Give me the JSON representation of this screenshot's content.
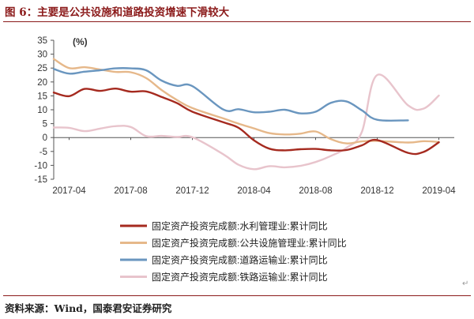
{
  "figure": {
    "title": "图 6：主要是公共设施和道路投资增速下滑较大",
    "source": "资料来源：Wind，国泰君安证券研究"
  },
  "chart_data": {
    "type": "line",
    "unit_label": "(%)",
    "ylim": [
      -15,
      35
    ],
    "yticks": [
      -15,
      -10,
      -5,
      0,
      5,
      10,
      15,
      20,
      25,
      30,
      35
    ],
    "xlim": [
      "2017-03",
      "2019-05"
    ],
    "xticks": [
      "2017-04",
      "2017-08",
      "2017-12",
      "2018-04",
      "2018-08",
      "2018-12",
      "2019-04"
    ],
    "grid": false,
    "legend_position": "bottom",
    "x": [
      "2017-03",
      "2017-04",
      "2017-05",
      "2017-06",
      "2017-07",
      "2017-08",
      "2017-09",
      "2017-10",
      "2017-11",
      "2017-12",
      "2018-02",
      "2018-03",
      "2018-04",
      "2018-05",
      "2018-06",
      "2018-07",
      "2018-08",
      "2018-09",
      "2018-10",
      "2018-11",
      "2018-12",
      "2019-02",
      "2019-03",
      "2019-04",
      "2019-05"
    ],
    "series": [
      {
        "name": "固定资产投资完成额:水利管理业:累计同比",
        "color": "#a52a1f",
        "values": [
          16.2,
          14.9,
          17.5,
          16.8,
          17.6,
          16.5,
          16.6,
          14.6,
          12.4,
          9.3,
          5.5,
          3.5,
          -1.0,
          -4.0,
          -4.6,
          -4.2,
          -4.1,
          -4.6,
          -4.5,
          -2.8,
          -0.9,
          -5.5,
          -5.2,
          -1.7,
          null
        ]
      },
      {
        "name": "固定资产投资完成额:公共设施管理业:累计同比",
        "color": "#e6b88a",
        "values": [
          28.3,
          25.0,
          25.3,
          24.5,
          23.6,
          23.5,
          21.4,
          17.1,
          13.5,
          10.6,
          6.9,
          5.0,
          3.3,
          1.6,
          1.1,
          1.4,
          2.2,
          -0.6,
          -2.1,
          -1.4,
          -1.2,
          -1.8,
          -1.3,
          -1.6,
          null
        ]
      },
      {
        "name": "固定资产投资完成额:道路运输业:累计同比",
        "color": "#6a96bf",
        "values": [
          24.7,
          23.0,
          23.7,
          24.2,
          24.9,
          24.9,
          24.2,
          20.5,
          18.6,
          18.5,
          10.1,
          10.2,
          9.1,
          9.3,
          10.0,
          8.7,
          9.3,
          12.5,
          13.0,
          9.8,
          6.4,
          6.2,
          null,
          null,
          null
        ]
      },
      {
        "name": "固定资产投资完成额:铁路运输业:累计同比",
        "color": "#e8c4cc",
        "values": [
          3.6,
          3.5,
          2.3,
          3.2,
          4.1,
          3.8,
          0.5,
          0.6,
          0.2,
          0.1,
          -6.0,
          -9.8,
          -11.4,
          -10.3,
          -10.7,
          -10.2,
          -8.8,
          -6.6,
          -3.7,
          2.0,
          22.5,
          11.6,
          10.4,
          15.1,
          null
        ]
      }
    ]
  }
}
